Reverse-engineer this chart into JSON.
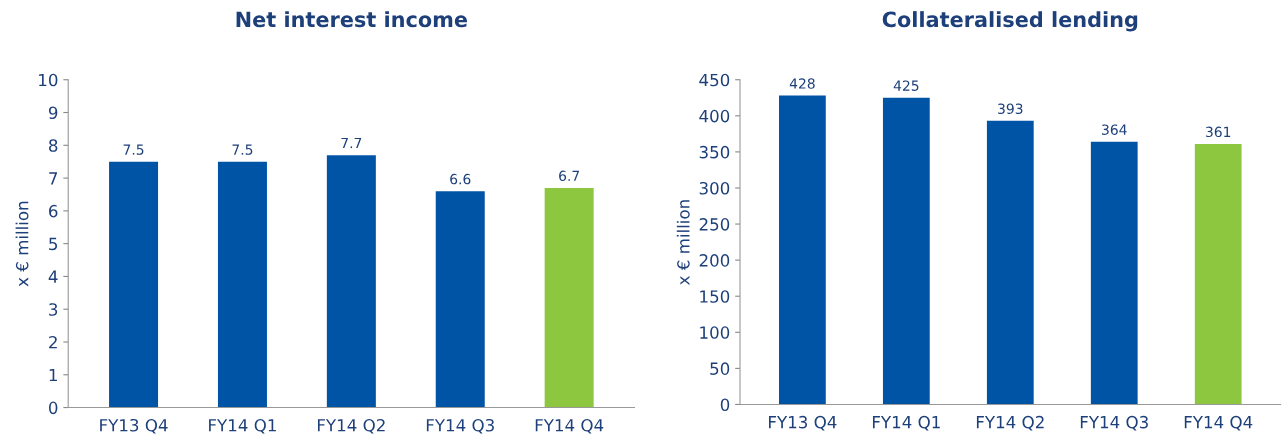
{
  "chart_data": [
    {
      "type": "bar",
      "title": "Net interest income",
      "ylabel": "x € million",
      "categories": [
        "FY13 Q4",
        "FY14 Q1",
        "FY14 Q2",
        "FY14 Q3",
        "FY14 Q4"
      ],
      "values": [
        7.5,
        7.5,
        7.7,
        6.6,
        6.7
      ],
      "colors": [
        "#0054a6",
        "#0054a6",
        "#0054a6",
        "#0054a6",
        "#8dc63f"
      ],
      "ylim": [
        0,
        10
      ],
      "yticks": [
        0,
        1,
        2,
        3,
        4,
        5,
        6,
        7,
        8,
        9,
        10
      ],
      "data_labels": true,
      "grid": false,
      "legend": false
    },
    {
      "type": "bar",
      "title": "Collateralised lending",
      "ylabel": "x € million",
      "categories": [
        "FY13 Q4",
        "FY14 Q1",
        "FY14 Q2",
        "FY14 Q3",
        "FY14 Q4"
      ],
      "values": [
        428,
        425,
        393,
        364,
        361
      ],
      "colors": [
        "#0054a6",
        "#0054a6",
        "#0054a6",
        "#0054a6",
        "#8dc63f"
      ],
      "ylim": [
        0,
        450
      ],
      "yticks": [
        0,
        50,
        100,
        150,
        200,
        250,
        300,
        350,
        400,
        450
      ],
      "data_labels": true,
      "grid": false,
      "legend": false
    }
  ]
}
